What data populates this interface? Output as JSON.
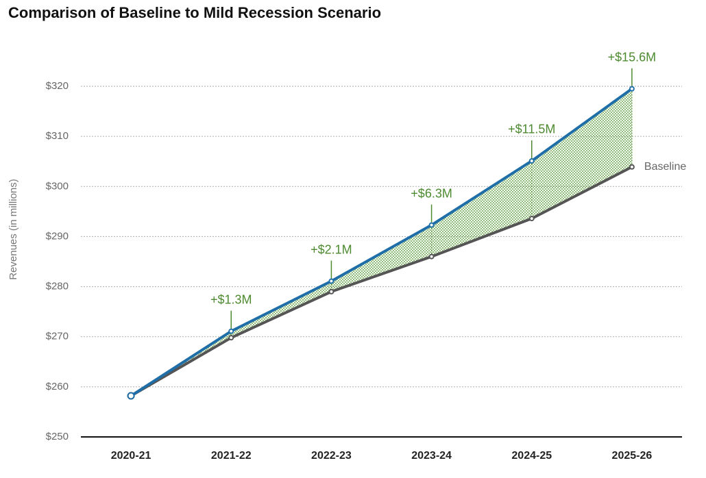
{
  "chart_data": {
    "type": "line",
    "title": "Comparison of Baseline to Mild Recession Scenario",
    "y_label": "Revenues (in millions)",
    "categories": [
      "2020-21",
      "2021-22",
      "2022-23",
      "2023-24",
      "2024-25",
      "2025-26"
    ],
    "series": [
      {
        "name": "Baseline",
        "color": "#555555",
        "values": [
          258.2,
          269.8,
          279.0,
          286.0,
          293.6,
          303.9
        ]
      },
      {
        "color": "#1f6ea8",
        "values": [
          258.2,
          271.1,
          281.1,
          292.3,
          305.1,
          319.5
        ]
      }
    ],
    "differences": {
      "color": "#4d8a2f",
      "values": [
        null,
        1.3,
        2.1,
        6.3,
        11.5,
        15.6
      ],
      "value_labels": [
        null,
        "+$1.3M",
        "+$2.1M",
        "+$6.3M",
        "+$11.5M",
        "+$15.6M"
      ]
    },
    "ylim": [
      250,
      320
    ],
    "yticks": [
      {
        "value": 250,
        "label": "$250"
      },
      {
        "value": 260,
        "label": "$260"
      },
      {
        "value": 270,
        "label": "$270"
      },
      {
        "value": 280,
        "label": "$280"
      },
      {
        "value": 290,
        "label": "$290"
      },
      {
        "value": 300,
        "label": "$300"
      },
      {
        "value": 310,
        "label": "$310"
      },
      {
        "value": 320,
        "label": "$320"
      }
    ],
    "grid": true
  }
}
